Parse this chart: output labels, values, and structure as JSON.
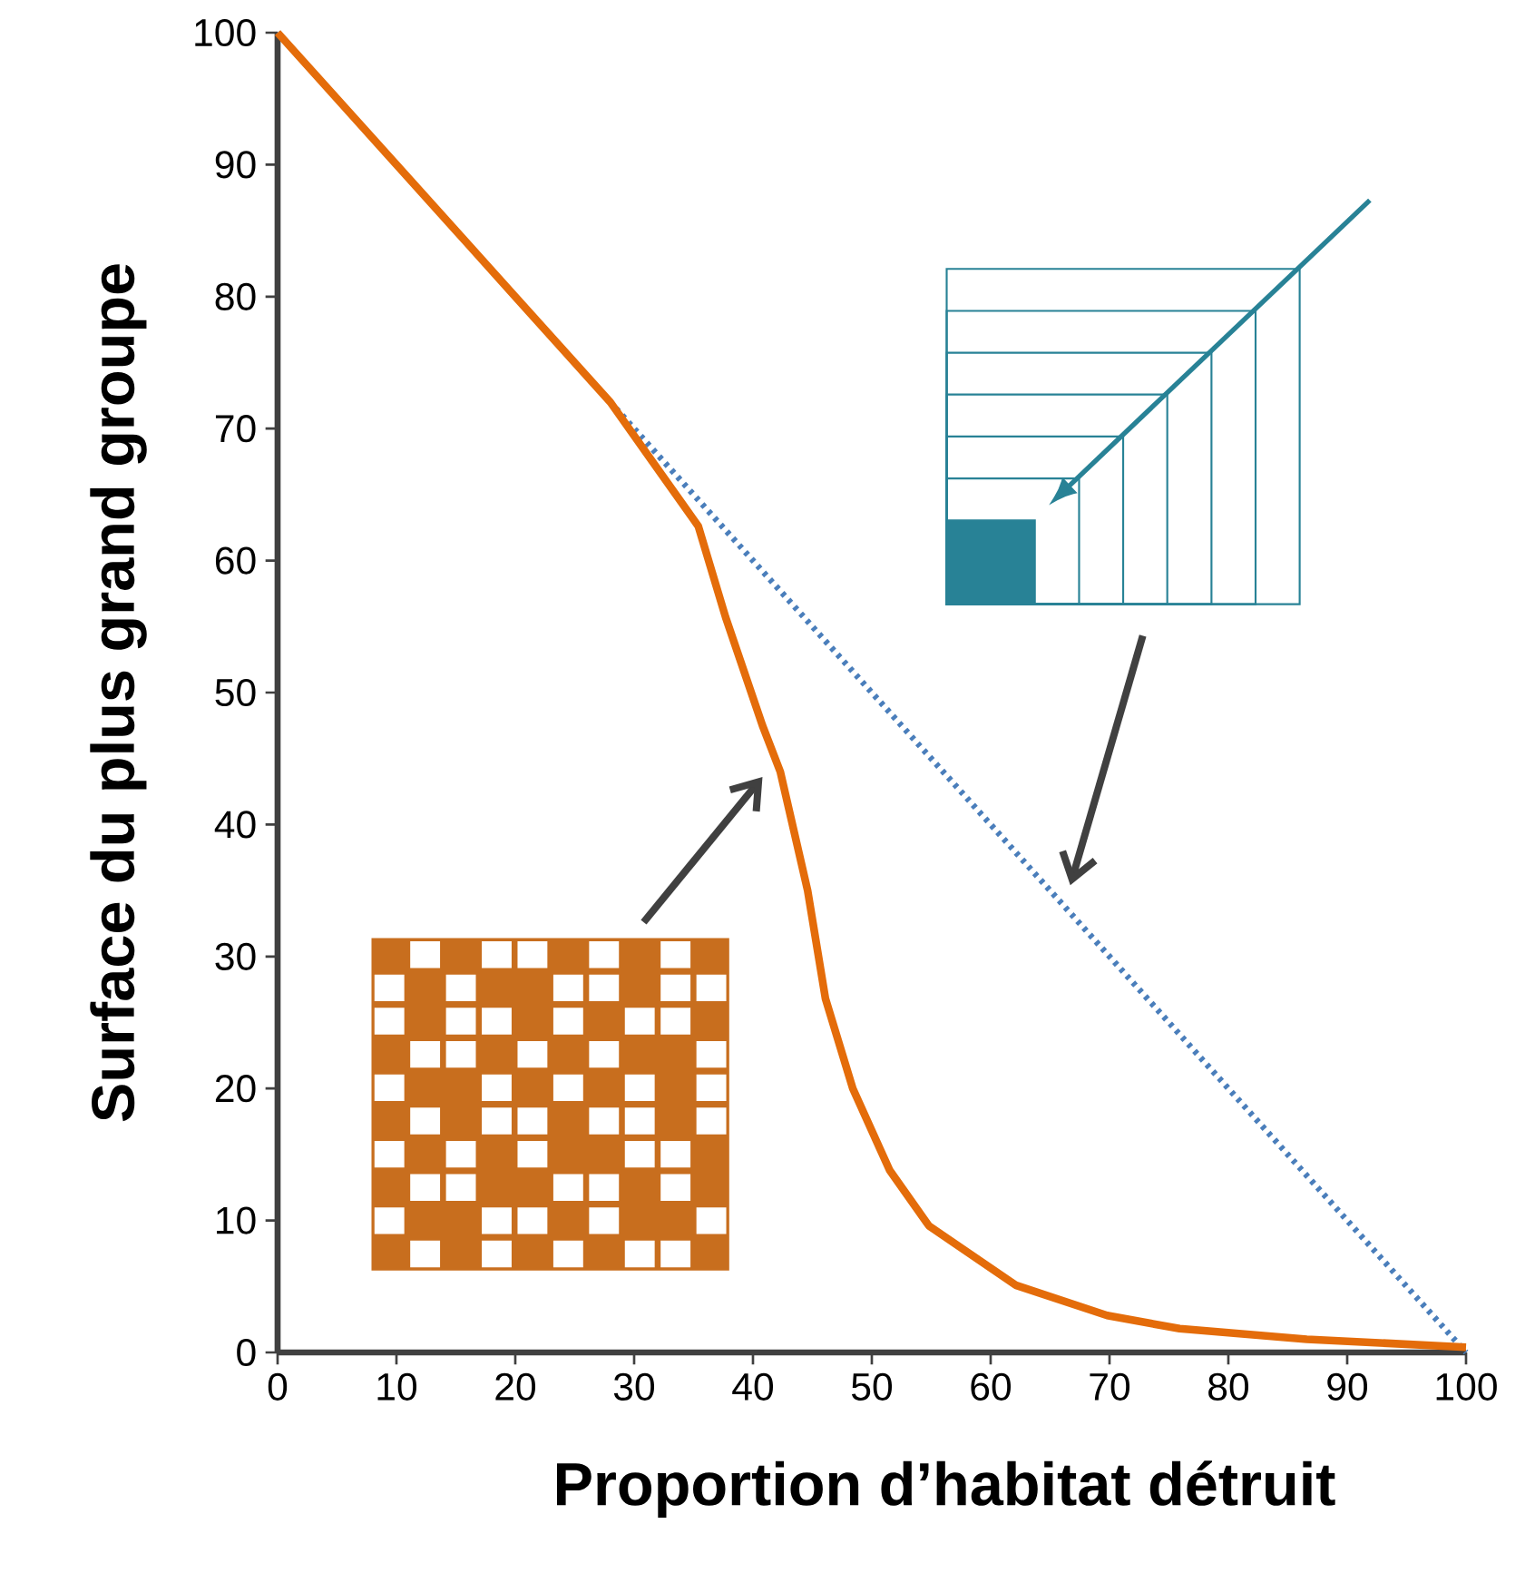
{
  "chart_data": {
    "type": "line",
    "xlabel": "Proportion d’habitat détruit",
    "ylabel": "Surface du plus grand groupe",
    "xlim": [
      0,
      100
    ],
    "ylim": [
      0,
      100
    ],
    "xticks": [
      0,
      10,
      20,
      30,
      40,
      50,
      60,
      70,
      80,
      90,
      100
    ],
    "yticks": [
      0,
      10,
      20,
      30,
      40,
      50,
      60,
      70,
      80,
      90,
      100
    ],
    "grid": false,
    "series": [
      {
        "color": "#4a7ebb",
        "line_style": "dotted",
        "x": [
          0,
          100
        ],
        "values": [
          100,
          0
        ]
      },
      {
        "color": "#e46c0a",
        "line_style": "solid",
        "x": [
          0,
          10,
          20,
          28,
          35.4,
          37.7,
          40.8,
          42.3,
          44.6,
          46.1,
          48.4,
          51.5,
          54.8,
          62.1,
          69.8,
          75.9,
          86.6,
          100
        ],
        "values": [
          100,
          90,
          80,
          72,
          62.6,
          55.7,
          47.5,
          44,
          35,
          26.8,
          20,
          13.8,
          9.6,
          5.1,
          2.8,
          1.8,
          1,
          0.4
        ]
      }
    ]
  }
}
